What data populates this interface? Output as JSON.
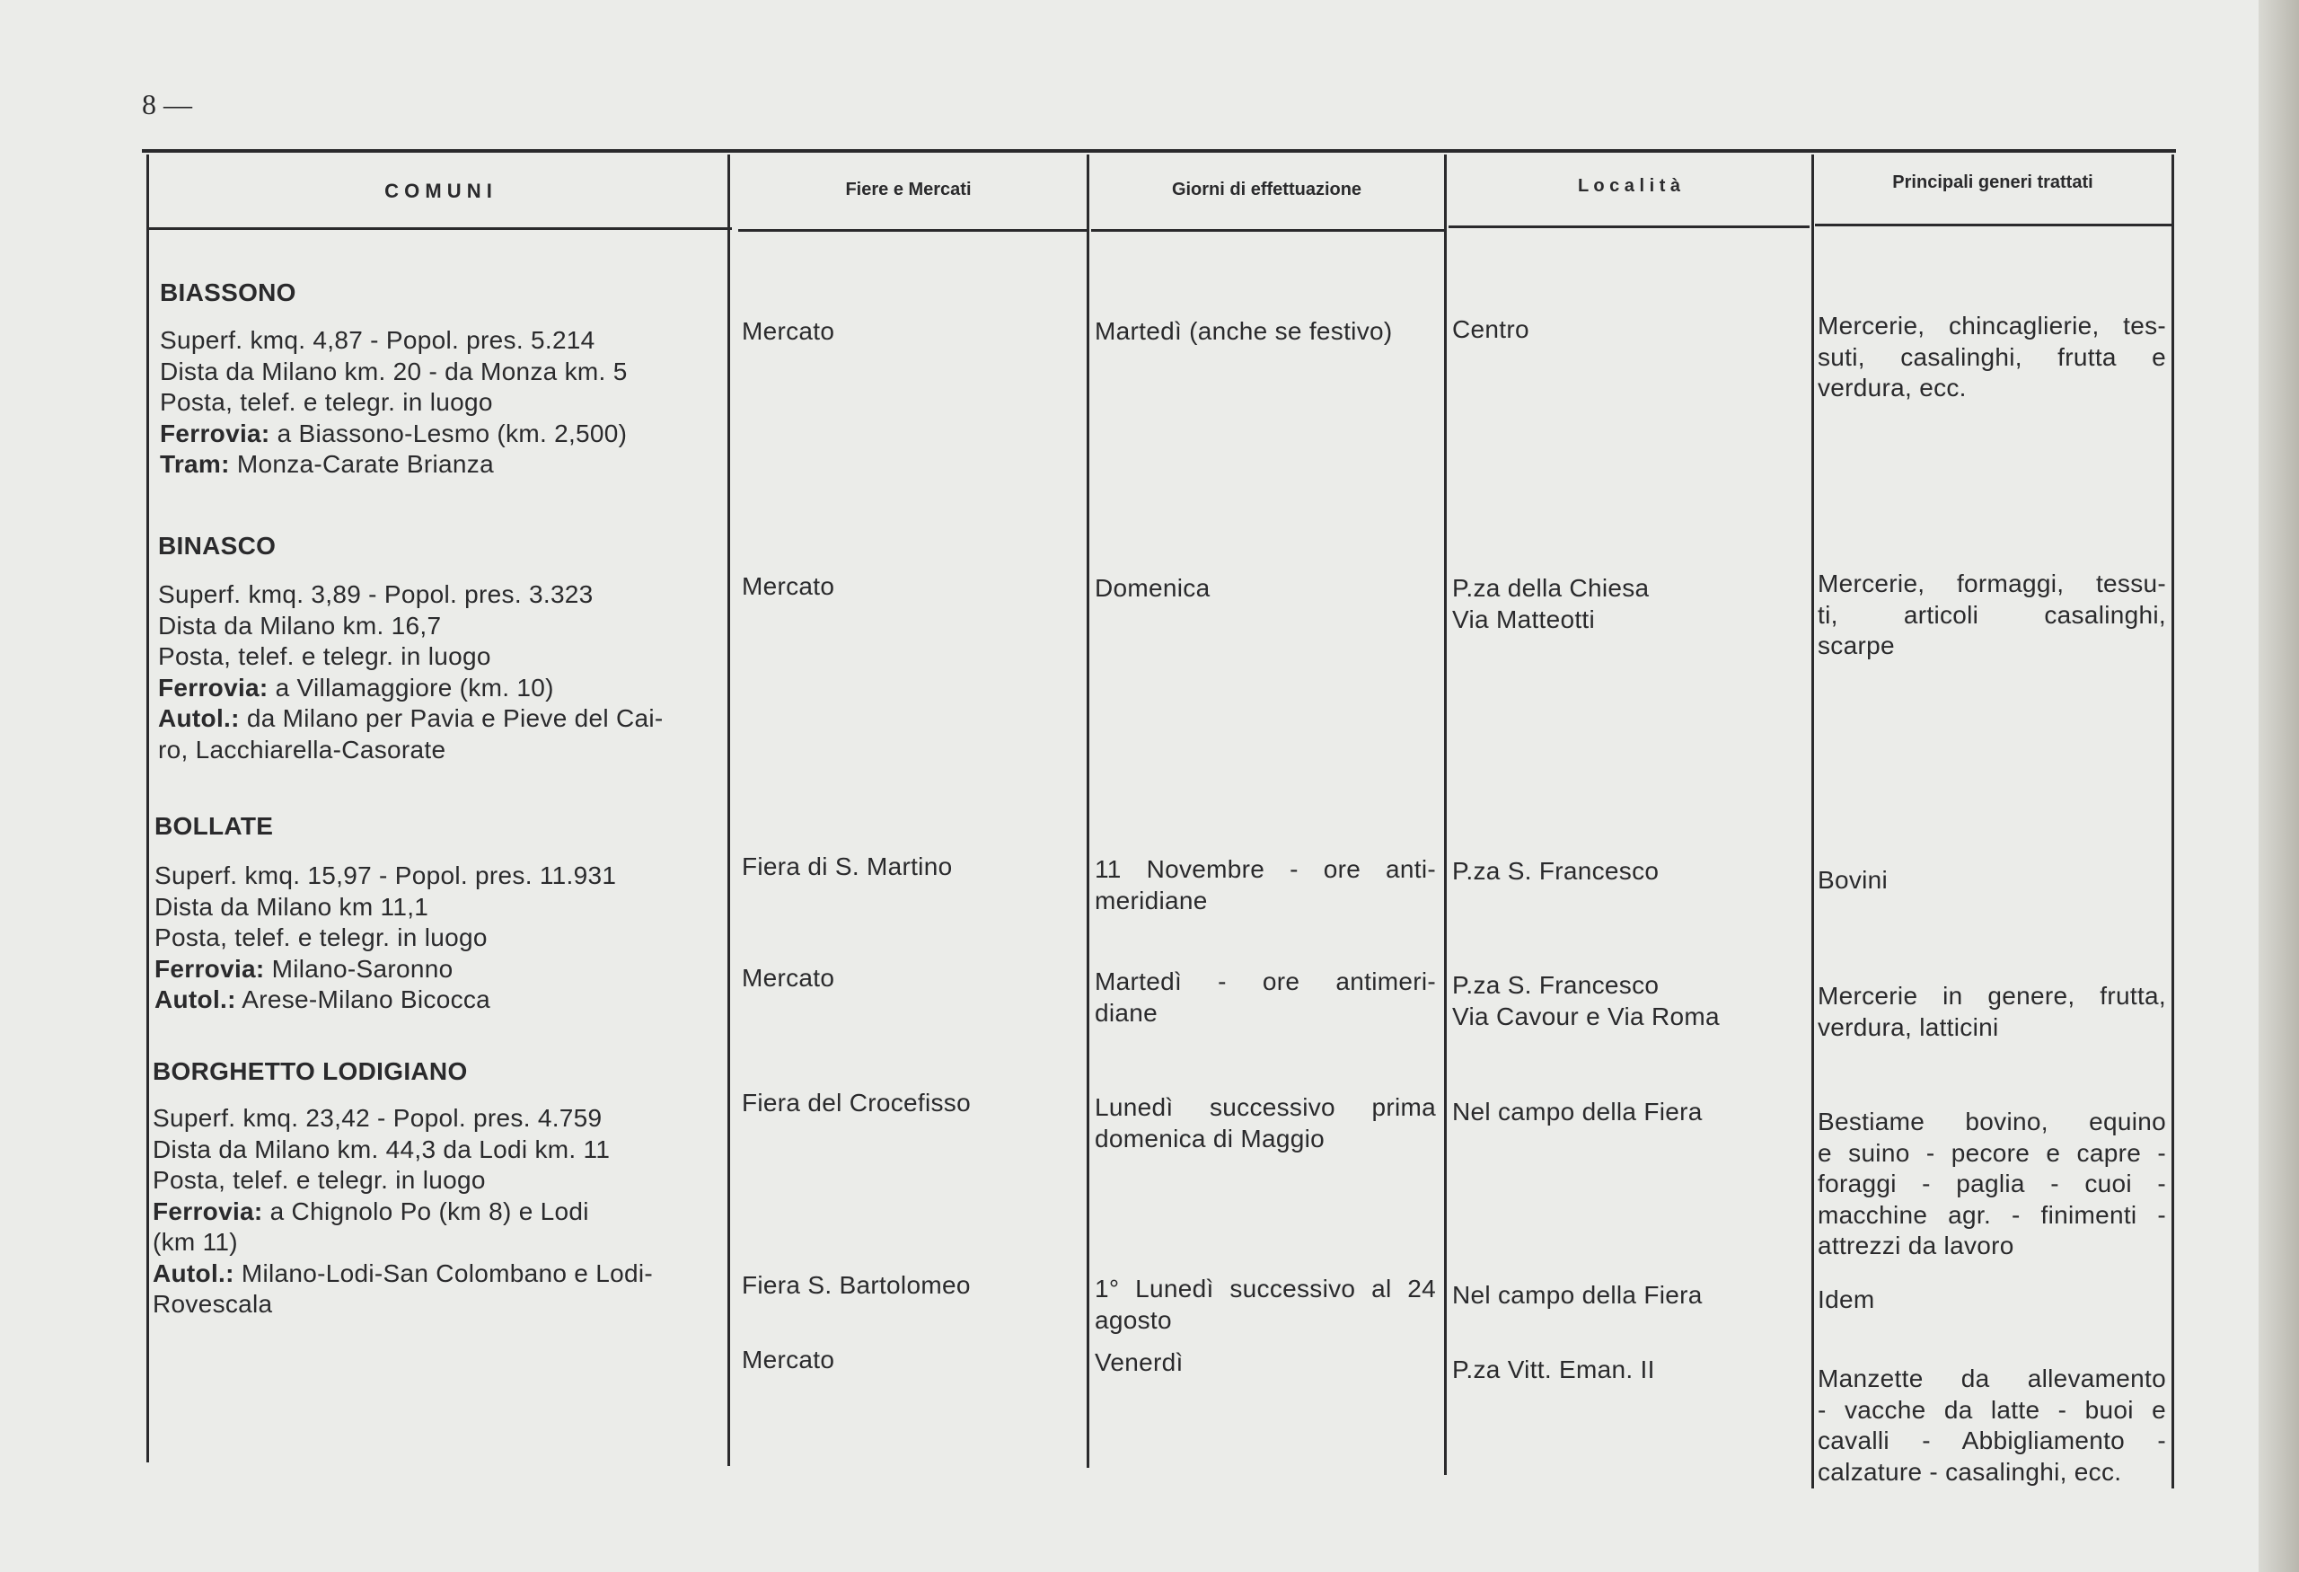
{
  "page_number": "8 —",
  "headers": [
    "C O M U N I",
    "Fiere e Mercati",
    "Giorni di effettuazione",
    "L o c a l i t à",
    "Principali generi trattati"
  ],
  "comuni": [
    {
      "name": "BIASSONO",
      "info": [
        {
          "label": "",
          "text": "Superf. kmq. 4,87 - Popol. pres. 5.214"
        },
        {
          "label": "",
          "text": "Dista da Milano km. 20 - da Monza km. 5"
        },
        {
          "label": "",
          "text": "Posta, telef. e telegr. in luogo"
        },
        {
          "label": "Ferrovia:",
          "text": " a Biassono-Lesmo (km. 2,500)"
        },
        {
          "label": "Tram:",
          "text": " Monza-Carate Brianza"
        }
      ]
    },
    {
      "name": "BINASCO",
      "info": [
        {
          "label": "",
          "text": "Superf. kmq. 3,89 - Popol. pres. 3.323"
        },
        {
          "label": "",
          "text": "Dista da Milano km. 16,7"
        },
        {
          "label": "",
          "text": "Posta, telef. e telegr. in luogo"
        },
        {
          "label": "Ferrovia:",
          "text": " a Villamaggiore (km. 10)"
        },
        {
          "label": "Autol.:",
          "text": " da Milano per Pavia e Pieve del Cai-"
        },
        {
          "label": "",
          "text": "ro, Lacchiarella-Casorate"
        }
      ]
    },
    {
      "name": "BOLLATE",
      "info": [
        {
          "label": "",
          "text": "Superf. kmq. 15,97 - Popol. pres. 11.931"
        },
        {
          "label": "",
          "text": "Dista da Milano km 11,1"
        },
        {
          "label": "",
          "text": "Posta, telef. e telegr. in luogo"
        },
        {
          "label": "Ferrovia:",
          "text": " Milano-Saronno"
        },
        {
          "label": "Autol.:",
          "text": " Arese-Milano Bicocca"
        }
      ]
    },
    {
      "name": "BORGHETTO LODIGIANO",
      "info": [
        {
          "label": "",
          "text": "Superf. kmq. 23,42 - Popol. pres. 4.759"
        },
        {
          "label": "",
          "text": "Dista da Milano km. 44,3 da Lodi km. 11"
        },
        {
          "label": "",
          "text": "Posta, telef. e telegr. in luogo"
        },
        {
          "label": "Ferrovia:",
          "text": " a Chignolo Po (km 8) e Lodi"
        },
        {
          "label": "",
          "text": "(km 11)"
        },
        {
          "label": "Autol.:",
          "text": " Milano-Lodi-San Colombano e Lodi-"
        },
        {
          "label": "",
          "text": "Rovescala"
        }
      ]
    }
  ],
  "entries": [
    {
      "fiera": "Mercato",
      "giorni": [
        "Martedì (anche se festivo)"
      ],
      "localita": [
        "Centro"
      ],
      "generi": [
        "Mercerie, chincaglierie, tes-",
        "suti, casalinghi, frutta e",
        "verdura, ecc."
      ]
    },
    {
      "fiera": "Mercato",
      "giorni": [
        "Domenica"
      ],
      "localita": [
        "P.za della Chiesa",
        "Via Matteotti"
      ],
      "generi": [
        "Mercerie, formaggi, tessu-",
        "ti, articoli casalinghi,",
        "scarpe"
      ]
    },
    {
      "fiera": "Fiera di S. Martino",
      "giorni": [
        "11 Novembre - ore anti-",
        "meridiane"
      ],
      "localita": [
        "P.za S. Francesco"
      ],
      "generi": [
        "Bovini"
      ]
    },
    {
      "fiera": "Mercato",
      "giorni": [
        "Martedì - ore antimeri-",
        "diane"
      ],
      "localita": [
        "P.za S. Francesco",
        "Via Cavour e Via Roma"
      ],
      "generi": [
        "Mercerie in genere, frutta,",
        "verdura, latticini"
      ]
    },
    {
      "fiera": "Fiera del Crocefisso",
      "giorni": [
        "Lunedì successivo prima",
        "domenica di Maggio"
      ],
      "localita": [
        "Nel campo della Fiera"
      ],
      "generi": [
        "Bestiame bovino, equino",
        "e suino - pecore e capre -",
        "foraggi - paglia - cuoi -",
        "macchine agr. - finimenti -",
        "attrezzi da lavoro"
      ]
    },
    {
      "fiera": "Fiera S. Bartolomeo",
      "giorni": [
        "1° Lunedì successivo al 24",
        "agosto"
      ],
      "localita": [
        "Nel campo della Fiera"
      ],
      "generi": [
        "Idem"
      ]
    },
    {
      "fiera": "Mercato",
      "giorni": [
        "Venerdì"
      ],
      "localita": [
        "P.za Vitt. Eman. II"
      ],
      "generi": [
        "Manzette da allevamento",
        "- vacche da latte - buoi e",
        "cavalli - Abbigliamento -",
        "calzature - casalinghi, ecc."
      ]
    }
  ]
}
